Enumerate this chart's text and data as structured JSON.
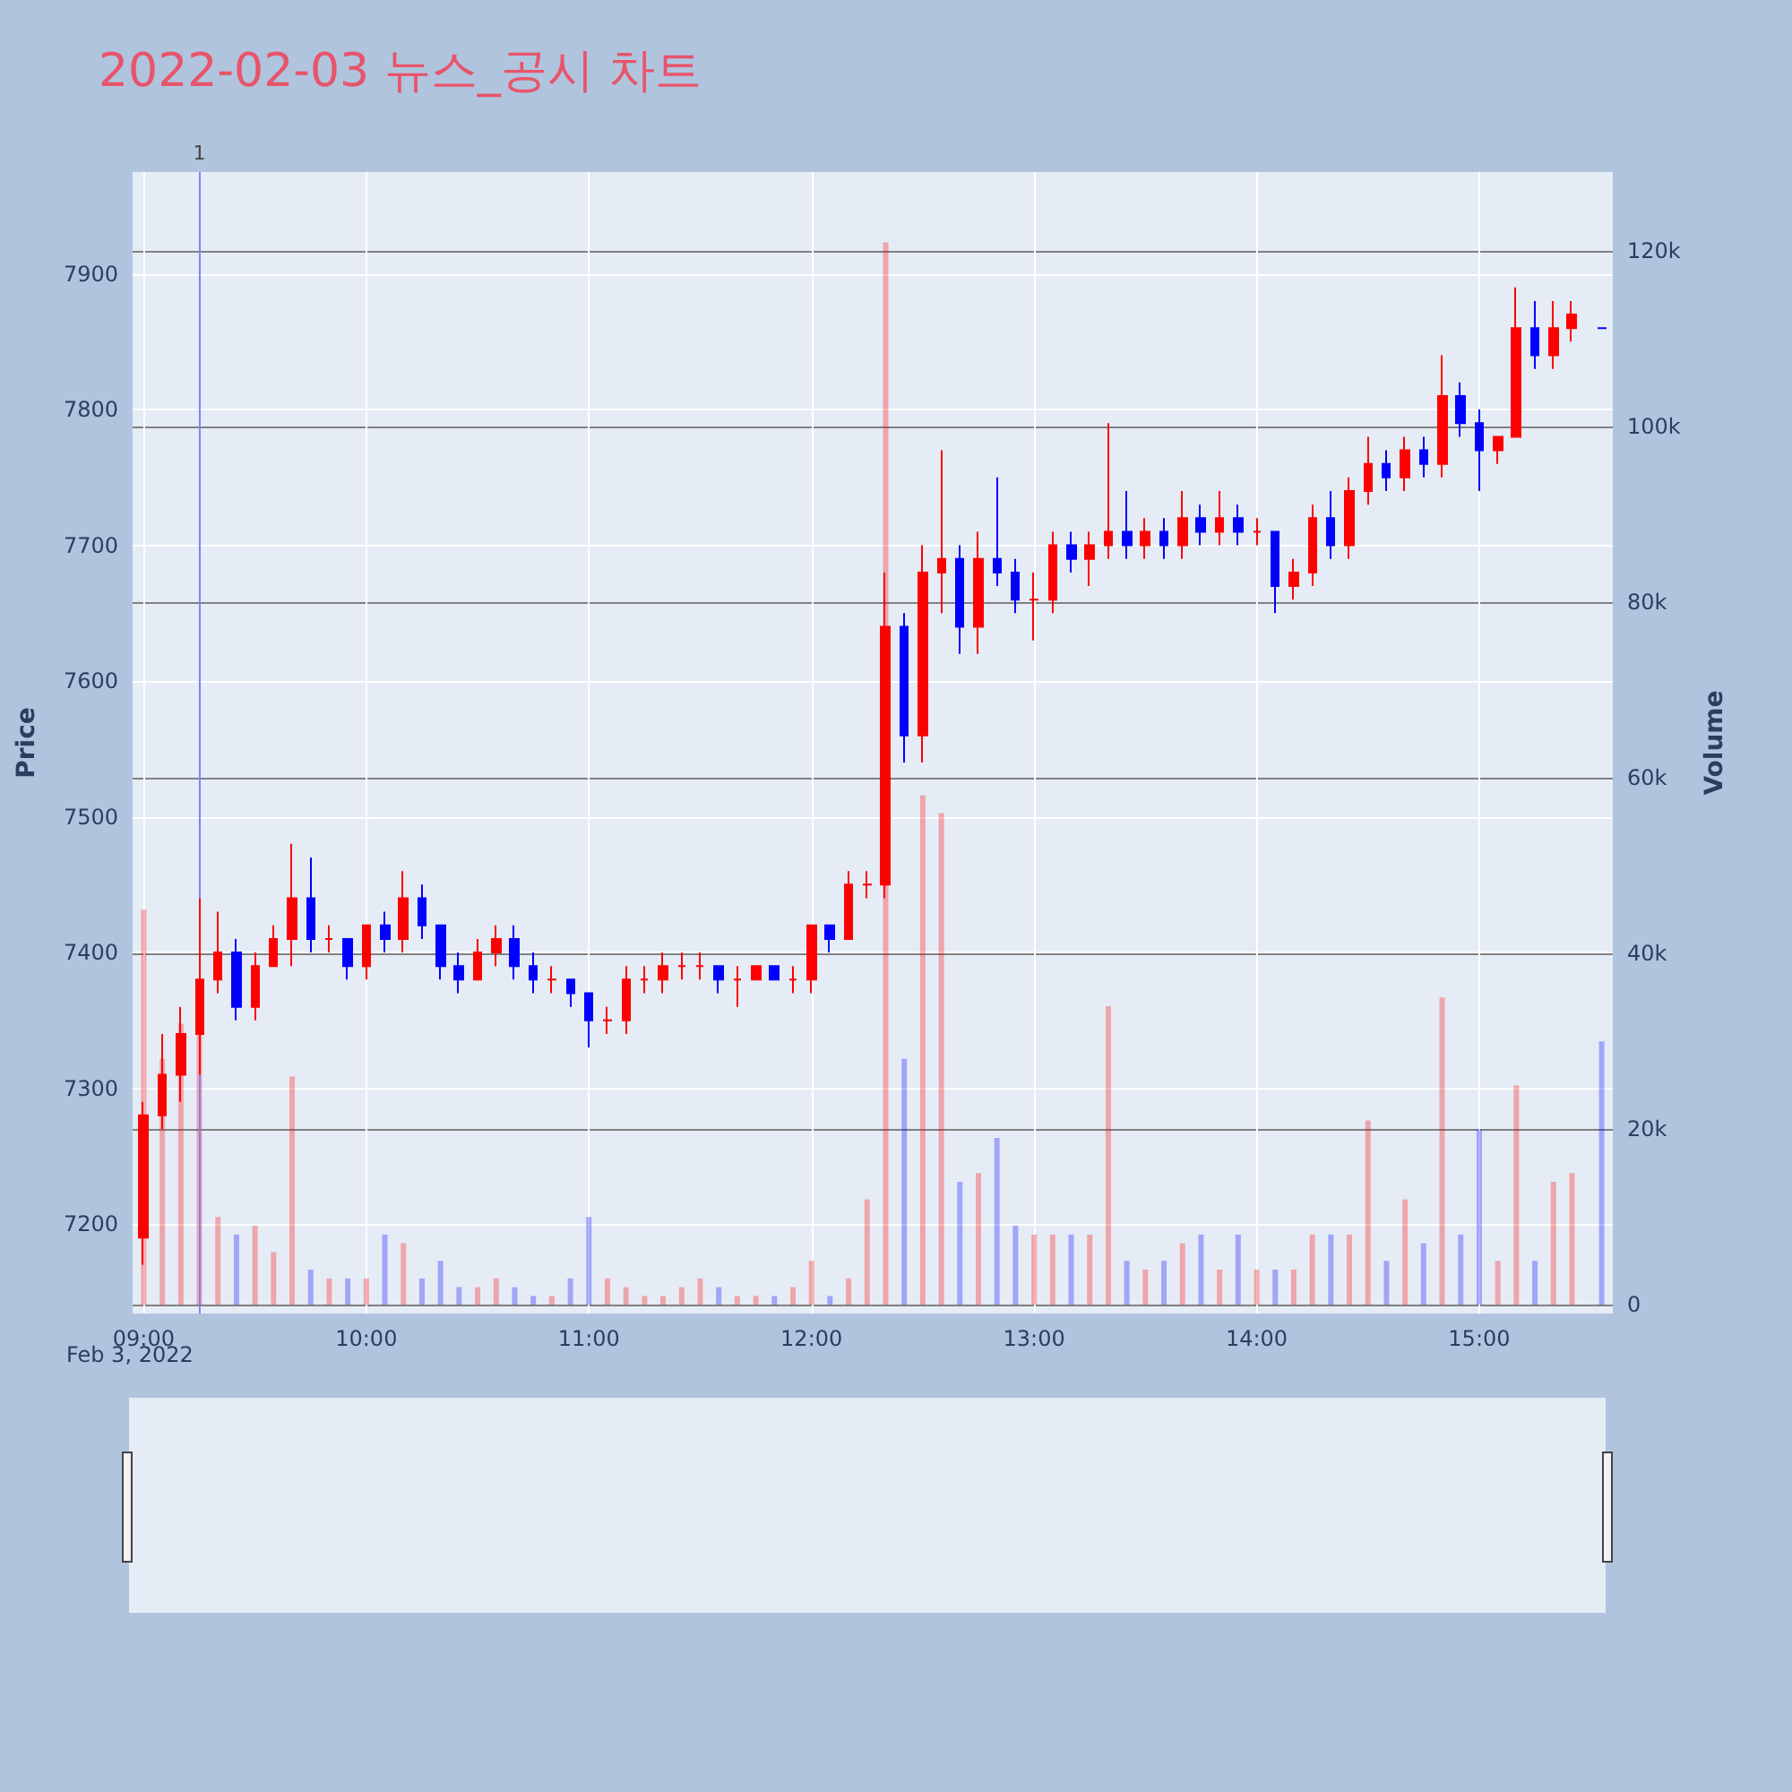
{
  "chart_data": {
    "type": "candlestick",
    "title": "2022-02-03 뉴스_공시 차트",
    "ylabel": "Price",
    "y2label": "Volume",
    "annotations": [
      "Feb 3, 2022"
    ],
    "x": [
      "2022-02-03T09:00",
      "2022-02-03T09:05",
      "2022-02-03T09:10",
      "2022-02-03T09:15",
      "2022-02-03T09:20",
      "2022-02-03T09:25",
      "2022-02-03T09:30",
      "2022-02-03T09:35",
      "2022-02-03T09:40",
      "2022-02-03T09:45",
      "2022-02-03T09:50",
      "2022-02-03T09:55",
      "2022-02-03T10:00",
      "2022-02-03T10:05",
      "2022-02-03T10:10",
      "2022-02-03T10:15",
      "2022-02-03T10:20",
      "2022-02-03T10:25",
      "2022-02-03T10:30",
      "2022-02-03T10:35",
      "2022-02-03T10:40",
      "2022-02-03T10:45",
      "2022-02-03T10:50",
      "2022-02-03T10:55",
      "2022-02-03T11:00",
      "2022-02-03T11:05",
      "2022-02-03T11:10",
      "2022-02-03T11:15",
      "2022-02-03T11:20",
      "2022-02-03T11:25",
      "2022-02-03T11:30",
      "2022-02-03T11:35",
      "2022-02-03T11:40",
      "2022-02-03T11:45",
      "2022-02-03T11:50",
      "2022-02-03T11:55",
      "2022-02-03T12:00",
      "2022-02-03T12:05",
      "2022-02-03T12:10",
      "2022-02-03T12:15",
      "2022-02-03T12:20",
      "2022-02-03T12:25",
      "2022-02-03T12:30",
      "2022-02-03T12:35",
      "2022-02-03T12:40",
      "2022-02-03T12:45",
      "2022-02-03T12:50",
      "2022-02-03T12:55",
      "2022-02-03T13:00",
      "2022-02-03T13:05",
      "2022-02-03T13:10",
      "2022-02-03T13:15",
      "2022-02-03T13:20",
      "2022-02-03T13:25",
      "2022-02-03T13:30",
      "2022-02-03T13:35",
      "2022-02-03T13:40",
      "2022-02-03T13:45",
      "2022-02-03T13:50",
      "2022-02-03T13:55",
      "2022-02-03T14:00",
      "2022-02-03T14:05",
      "2022-02-03T14:10",
      "2022-02-03T14:15",
      "2022-02-03T14:20",
      "2022-02-03T14:25",
      "2022-02-03T14:30",
      "2022-02-03T14:35",
      "2022-02-03T14:40",
      "2022-02-03T14:45",
      "2022-02-03T14:50",
      "2022-02-03T14:55",
      "2022-02-03T15:00",
      "2022-02-03T15:05",
      "2022-02-03T15:10",
      "2022-02-03T15:15",
      "2022-02-03T15:20",
      "2022-02-03T15:25",
      "2022-02-03T15:33"
    ],
    "series": [
      {
        "colors": [
          "#ff0000",
          "#ff0000",
          "#ff0000",
          "#ff0000",
          "#ff0000",
          "#0000ff",
          "#ff0000",
          "#ff0000",
          "#ff0000",
          "#0000ff",
          "#ff0000",
          "#0000ff",
          "#ff0000",
          "#0000ff",
          "#ff0000",
          "#0000ff",
          "#0000ff",
          "#0000ff",
          "#ff0000",
          "#ff0000",
          "#0000ff",
          "#0000ff",
          "#ff0000",
          "#0000ff",
          "#0000ff",
          "#ff0000",
          "#ff0000",
          "#ff0000",
          "#ff0000",
          "#ff0000",
          "#ff0000",
          "#0000ff",
          "#ff0000",
          "#ff0000",
          "#0000ff",
          "#ff0000",
          "#ff0000",
          "#0000ff",
          "#ff0000",
          "#ff0000",
          "#ff0000",
          "#0000ff",
          "#ff0000",
          "#ff0000",
          "#0000ff",
          "#ff0000",
          "#0000ff",
          "#0000ff",
          "#ff0000",
          "#ff0000",
          "#0000ff",
          "#ff0000",
          "#ff0000",
          "#0000ff",
          "#ff0000",
          "#0000ff",
          "#ff0000",
          "#0000ff",
          "#ff0000",
          "#0000ff",
          "#ff0000",
          "#0000ff",
          "#ff0000",
          "#ff0000",
          "#0000ff",
          "#ff0000",
          "#ff0000",
          "#0000ff",
          "#ff0000",
          "#0000ff",
          "#ff0000",
          "#0000ff",
          "#0000ff",
          "#ff0000",
          "#ff0000",
          "#0000ff",
          "#ff0000",
          "#ff0000",
          "#0000ff"
        ],
        "ohlc": [
          [
            7190,
            7290,
            7170,
            7280
          ],
          [
            7280,
            7340,
            7270,
            7310
          ],
          [
            7310,
            7360,
            7290,
            7340
          ],
          [
            7340,
            7440,
            7310,
            7380
          ],
          [
            7380,
            7430,
            7370,
            7400
          ],
          [
            7400,
            7410,
            7350,
            7360
          ],
          [
            7360,
            7400,
            7350,
            7390
          ],
          [
            7390,
            7420,
            7390,
            7410
          ],
          [
            7410,
            7480,
            7390,
            7440
          ],
          [
            7440,
            7470,
            7400,
            7410
          ],
          [
            7410,
            7420,
            7400,
            7410
          ],
          [
            7410,
            7410,
            7380,
            7390
          ],
          [
            7390,
            7420,
            7380,
            7420
          ],
          [
            7420,
            7430,
            7400,
            7410
          ],
          [
            7410,
            7460,
            7400,
            7440
          ],
          [
            7440,
            7450,
            7410,
            7420
          ],
          [
            7420,
            7420,
            7380,
            7390
          ],
          [
            7390,
            7400,
            7370,
            7380
          ],
          [
            7380,
            7410,
            7380,
            7400
          ],
          [
            7400,
            7420,
            7390,
            7410
          ],
          [
            7410,
            7420,
            7380,
            7390
          ],
          [
            7390,
            7400,
            7370,
            7380
          ],
          [
            7380,
            7390,
            7370,
            7380
          ],
          [
            7380,
            7380,
            7360,
            7370
          ],
          [
            7370,
            7370,
            7330,
            7350
          ],
          [
            7350,
            7360,
            7340,
            7350
          ],
          [
            7350,
            7390,
            7340,
            7380
          ],
          [
            7380,
            7390,
            7370,
            7380
          ],
          [
            7380,
            7400,
            7370,
            7390
          ],
          [
            7390,
            7400,
            7380,
            7390
          ],
          [
            7390,
            7400,
            7380,
            7390
          ],
          [
            7390,
            7390,
            7370,
            7380
          ],
          [
            7380,
            7390,
            7360,
            7380
          ],
          [
            7380,
            7390,
            7380,
            7390
          ],
          [
            7390,
            7390,
            7380,
            7380
          ],
          [
            7380,
            7390,
            7370,
            7380
          ],
          [
            7380,
            7420,
            7370,
            7420
          ],
          [
            7420,
            7420,
            7400,
            7410
          ],
          [
            7410,
            7460,
            7410,
            7450
          ],
          [
            7450,
            7460,
            7440,
            7450
          ],
          [
            7450,
            7680,
            7440,
            7640
          ],
          [
            7640,
            7650,
            7540,
            7560
          ],
          [
            7560,
            7700,
            7540,
            7680
          ],
          [
            7680,
            7770,
            7650,
            7690
          ],
          [
            7690,
            7700,
            7620,
            7640
          ],
          [
            7640,
            7710,
            7620,
            7690
          ],
          [
            7690,
            7750,
            7670,
            7680
          ],
          [
            7680,
            7690,
            7650,
            7660
          ],
          [
            7660,
            7680,
            7630,
            7660
          ],
          [
            7660,
            7710,
            7650,
            7700
          ],
          [
            7700,
            7710,
            7680,
            7690
          ],
          [
            7690,
            7710,
            7670,
            7700
          ],
          [
            7700,
            7790,
            7690,
            7710
          ],
          [
            7710,
            7740,
            7690,
            7700
          ],
          [
            7700,
            7720,
            7690,
            7710
          ],
          [
            7710,
            7720,
            7690,
            7700
          ],
          [
            7700,
            7740,
            7690,
            7720
          ],
          [
            7720,
            7730,
            7700,
            7710
          ],
          [
            7710,
            7740,
            7700,
            7720
          ],
          [
            7720,
            7730,
            7700,
            7710
          ],
          [
            7710,
            7720,
            7700,
            7710
          ],
          [
            7710,
            7710,
            7650,
            7670
          ],
          [
            7670,
            7690,
            7660,
            7680
          ],
          [
            7680,
            7730,
            7670,
            7720
          ],
          [
            7720,
            7740,
            7690,
            7700
          ],
          [
            7700,
            7750,
            7690,
            7740
          ],
          [
            7740,
            7780,
            7730,
            7760
          ],
          [
            7760,
            7770,
            7740,
            7750
          ],
          [
            7750,
            7780,
            7740,
            7770
          ],
          [
            7770,
            7780,
            7750,
            7760
          ],
          [
            7760,
            7840,
            7750,
            7810
          ],
          [
            7810,
            7820,
            7780,
            7790
          ],
          [
            7790,
            7800,
            7740,
            7770
          ],
          [
            7770,
            7780,
            7760,
            7780
          ],
          [
            7780,
            7890,
            7780,
            7860
          ],
          [
            7860,
            7880,
            7830,
            7840
          ],
          [
            7840,
            7880,
            7830,
            7860
          ],
          [
            7860,
            7880,
            7850,
            7870
          ],
          [
            7860,
            7860,
            7860,
            7860
          ]
        ]
      },
      {
        "type": "bar",
        "axis": "y2",
        "colors": [
          "#ff0000",
          "#ff0000",
          "#ff0000",
          "#ff0000",
          "#ff0000",
          "#0000ff",
          "#ff0000",
          "#ff0000",
          "#ff0000",
          "#0000ff",
          "#ff0000",
          "#0000ff",
          "#ff0000",
          "#0000ff",
          "#ff0000",
          "#0000ff",
          "#0000ff",
          "#0000ff",
          "#ff0000",
          "#ff0000",
          "#0000ff",
          "#0000ff",
          "#ff0000",
          "#0000ff",
          "#0000ff",
          "#ff0000",
          "#ff0000",
          "#ff0000",
          "#ff0000",
          "#ff0000",
          "#ff0000",
          "#0000ff",
          "#ff0000",
          "#ff0000",
          "#0000ff",
          "#ff0000",
          "#ff0000",
          "#0000ff",
          "#ff0000",
          "#ff0000",
          "#ff0000",
          "#0000ff",
          "#ff0000",
          "#ff0000",
          "#0000ff",
          "#ff0000",
          "#0000ff",
          "#0000ff",
          "#ff0000",
          "#ff0000",
          "#0000ff",
          "#ff0000",
          "#ff0000",
          "#0000ff",
          "#ff0000",
          "#0000ff",
          "#ff0000",
          "#0000ff",
          "#ff0000",
          "#0000ff",
          "#ff0000",
          "#0000ff",
          "#ff0000",
          "#ff0000",
          "#0000ff",
          "#ff0000",
          "#ff0000",
          "#0000ff",
          "#ff0000",
          "#0000ff",
          "#ff0000",
          "#0000ff",
          "#0000ff",
          "#ff0000",
          "#ff0000",
          "#0000ff",
          "#ff0000",
          "#ff0000",
          "#0000ff"
        ],
        "values": [
          45000,
          28000,
          32000,
          31000,
          10000,
          8000,
          9000,
          6000,
          26000,
          4000,
          3000,
          3000,
          3000,
          8000,
          7000,
          3000,
          5000,
          2000,
          2000,
          3000,
          2000,
          1000,
          1000,
          3000,
          10000,
          3000,
          2000,
          1000,
          1000,
          2000,
          3000,
          2000,
          1000,
          1000,
          1000,
          2000,
          5000,
          1000,
          3000,
          12000,
          121000,
          28000,
          58000,
          56000,
          14000,
          15000,
          19000,
          9000,
          8000,
          8000,
          8000,
          8000,
          34000,
          5000,
          4000,
          5000,
          7000,
          8000,
          4000,
          8000,
          4000,
          4000,
          4000,
          8000,
          8000,
          8000,
          21000,
          5000,
          12000,
          7000,
          35000,
          8000,
          20000,
          5000,
          25000,
          5000,
          14000,
          15000,
          30000
        ]
      }
    ],
    "xlim": [
      "2022-02-03T08:57",
      "2022-02-03T15:36"
    ],
    "xticks": [
      {
        "value": "2022-02-03T09:00",
        "label": "09:00"
      },
      {
        "value": "2022-02-03T10:00",
        "label": "10:00"
      },
      {
        "value": "2022-02-03T11:00",
        "label": "11:00"
      },
      {
        "value": "2022-02-03T12:00",
        "label": "12:00"
      },
      {
        "value": "2022-02-03T13:00",
        "label": "13:00"
      },
      {
        "value": "2022-02-03T14:00",
        "label": "14:00"
      },
      {
        "value": "2022-02-03T15:00",
        "label": "15:00"
      }
    ],
    "ylim": [
      7134,
      7975
    ],
    "yticks": [
      7200,
      7300,
      7400,
      7500,
      7600,
      7700,
      7800,
      7900
    ],
    "y2lim": [
      -1000,
      129000
    ],
    "y2ticks": [
      0,
      {
        "value": 20000,
        "label": "20k"
      },
      {
        "value": 40000,
        "label": "40k"
      },
      {
        "value": 60000,
        "label": "60k"
      },
      {
        "value": 80000,
        "label": "80k"
      },
      {
        "value": 100000,
        "label": "100k"
      },
      {
        "value": 120000,
        "label": "120k"
      }
    ],
    "ref_lines": [
      {
        "axis": "x",
        "value": "2022-02-03T09:15",
        "label": "1",
        "color": "#8080ff"
      }
    ],
    "grid": true
  }
}
